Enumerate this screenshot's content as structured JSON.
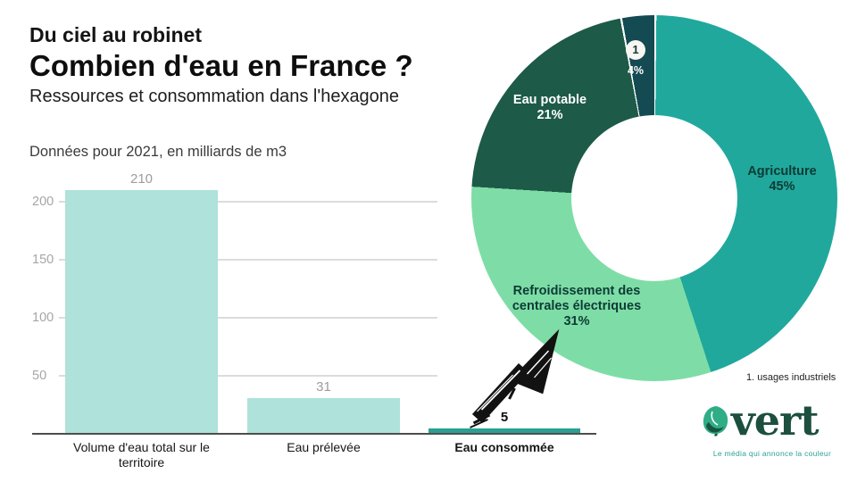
{
  "header": {
    "kicker": "Du ciel au robinet",
    "title": "Combien d'eau en France ?",
    "subtitle": "Ressources et consommation dans l'hexagone"
  },
  "chart_data": [
    {
      "type": "bar",
      "title": "Données pour 2021, en milliards de m3",
      "categories": [
        "Volume d'eau total sur le territoire",
        "Eau prélevée",
        "Eau consommée"
      ],
      "values": [
        210,
        31,
        5
      ],
      "yticks": [
        50,
        100,
        150,
        200
      ],
      "ylim": [
        0,
        215
      ],
      "bar_colors": [
        "#aee2db",
        "#aee2db",
        "#2b9f92"
      ],
      "emphasized_index": 2,
      "grid": true
    },
    {
      "type": "pie",
      "donut": true,
      "direction": "clockwise",
      "start_angle_deg": 0,
      "slices": [
        {
          "label": "Agriculture",
          "pct": 45,
          "color": "#21a89d",
          "text_color": "#0c3b35",
          "divider_before": true
        },
        {
          "label": "Refroidissement des centrales électriques",
          "pct": 31,
          "color": "#7edda6",
          "text_color": "#0c3b35"
        },
        {
          "label": "Eau potable",
          "pct": 21,
          "color": "#1d5a48",
          "text_color": "#ffffff"
        },
        {
          "label": "1",
          "pct": 4,
          "color": "#144a52",
          "text_color": "#ffffff",
          "divider_before": true,
          "marker_circle": true
        }
      ],
      "footnote": "1. usages industriels"
    }
  ],
  "logo": {
    "wordmark": "vert",
    "tagline": "Le média qui annonce la couleur",
    "brand_green": "#1c4f3e",
    "brand_teal": "#2aa392"
  }
}
